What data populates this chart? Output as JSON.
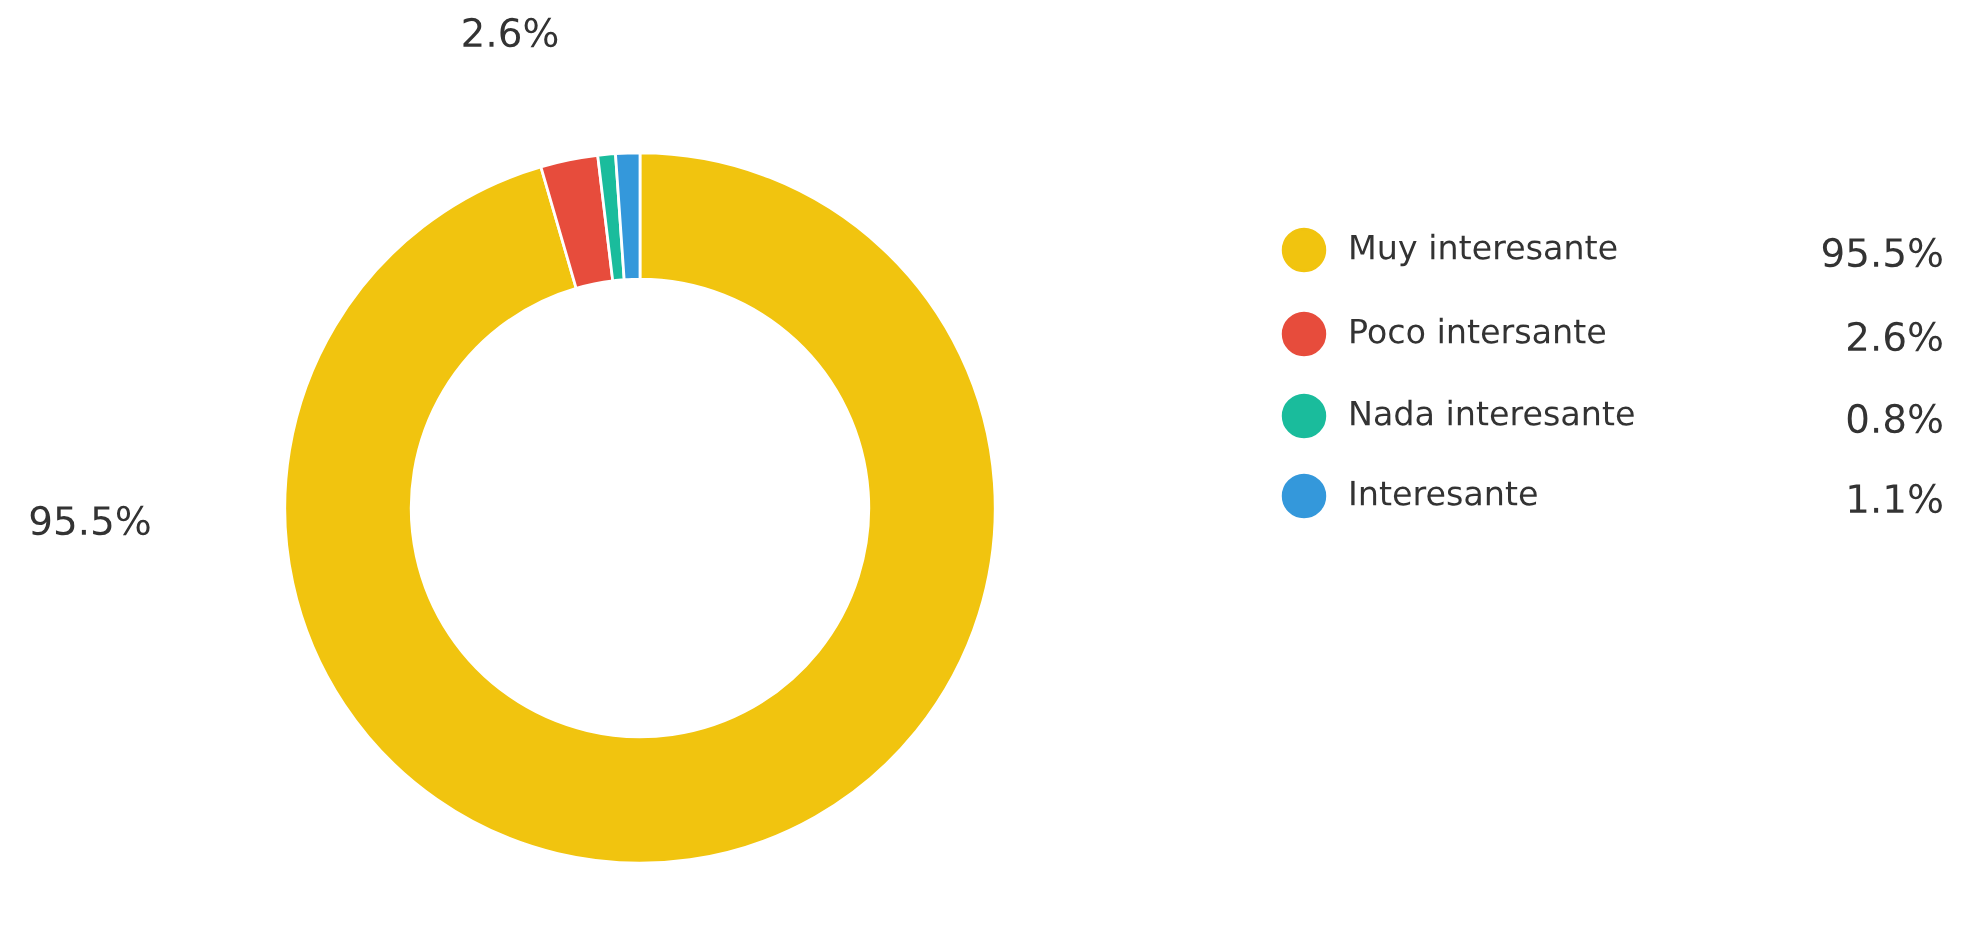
{
  "chart_data": {
    "type": "donut",
    "categories": [
      "Muy interesante",
      "Poco intersante",
      "Nada interesante",
      "Interesante"
    ],
    "values": [
      95.5,
      2.6,
      0.8,
      1.1
    ],
    "colors": [
      "#f1c40f",
      "#e74c3c",
      "#1abc9c",
      "#3498db"
    ],
    "value_labels": [
      "95.5%",
      "2.6%",
      "0.8%",
      "1.1%"
    ],
    "legend": "right"
  }
}
